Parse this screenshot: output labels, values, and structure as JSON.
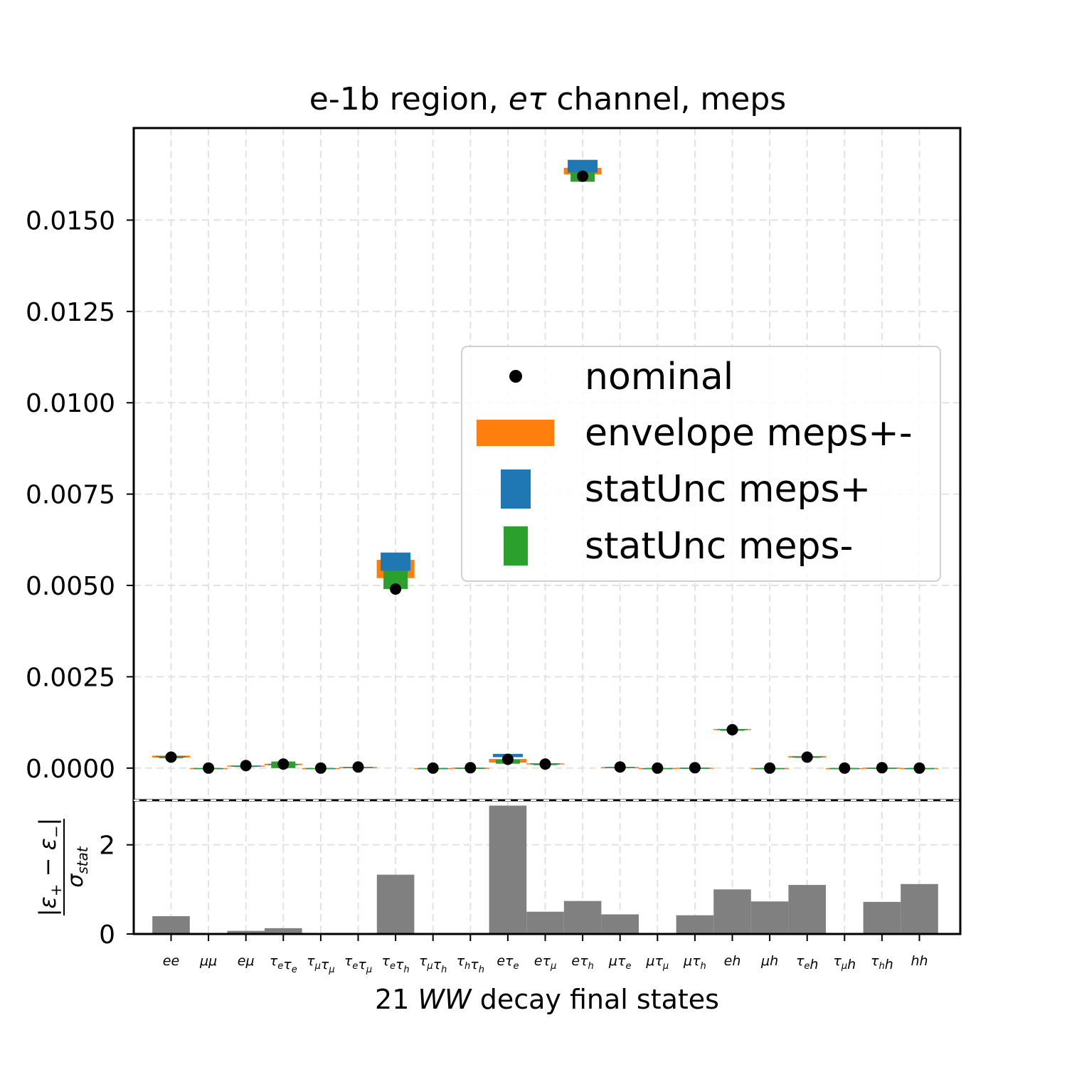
{
  "chart_data": [
    {
      "type": "scatter",
      "title": "e-1b region, eτ channel, meps",
      "title_parts": [
        "e-1b region, ",
        "eτ",
        " channel, meps"
      ],
      "ylim": [
        -0.00088,
        0.01752
      ],
      "yticks": [
        "0.0000",
        "0.0025",
        "0.0050",
        "0.0075",
        "0.0100",
        "0.0125",
        "0.0150"
      ],
      "ytick_values": [
        0,
        0.0025,
        0.005,
        0.0075,
        0.01,
        0.0125,
        0.015
      ],
      "grid": true,
      "legend_position": "center-right",
      "categories": [
        {
          "base": "ee",
          "sub": ""
        },
        {
          "base": "μμ",
          "sub": ""
        },
        {
          "base": "eμ",
          "sub": ""
        },
        {
          "parts": [
            [
              "τ",
              "e"
            ],
            [
              "τ",
              "e"
            ]
          ]
        },
        {
          "parts": [
            [
              "τ",
              "μ"
            ],
            [
              "τ",
              "μ"
            ]
          ]
        },
        {
          "parts": [
            [
              "τ",
              "e"
            ],
            [
              "τ",
              "μ"
            ]
          ]
        },
        {
          "parts": [
            [
              "τ",
              "e"
            ],
            [
              "τ",
              "h"
            ]
          ]
        },
        {
          "parts": [
            [
              "τ",
              "μ"
            ],
            [
              "τ",
              "h"
            ]
          ]
        },
        {
          "parts": [
            [
              "τ",
              "h"
            ],
            [
              "τ",
              "h"
            ]
          ]
        },
        {
          "parts": [
            [
              "e",
              ""
            ],
            [
              "τ",
              "e"
            ]
          ]
        },
        {
          "parts": [
            [
              "e",
              ""
            ],
            [
              "τ",
              "μ"
            ]
          ]
        },
        {
          "parts": [
            [
              "e",
              ""
            ],
            [
              "τ",
              "h"
            ]
          ]
        },
        {
          "parts": [
            [
              "μ",
              ""
            ],
            [
              "τ",
              "e"
            ]
          ]
        },
        {
          "parts": [
            [
              "μ",
              ""
            ],
            [
              "τ",
              "μ"
            ]
          ]
        },
        {
          "parts": [
            [
              "μ",
              ""
            ],
            [
              "τ",
              "h"
            ]
          ]
        },
        {
          "base": "eh",
          "sub": ""
        },
        {
          "base": "μh",
          "sub": ""
        },
        {
          "parts": [
            [
              "τ",
              "e"
            ],
            [
              "h",
              ""
            ]
          ]
        },
        {
          "parts": [
            [
              "τ",
              "μ"
            ],
            [
              "h",
              ""
            ]
          ]
        },
        {
          "parts": [
            [
              "τ",
              "h"
            ],
            [
              "h",
              ""
            ]
          ]
        },
        {
          "base": "hh",
          "sub": ""
        }
      ],
      "series": [
        {
          "name": "nominal",
          "color": "#000000",
          "values": [
            0.0003,
            0.0,
            7e-05,
            0.00011,
            0.0,
            3e-05,
            0.0049,
            0.0,
            1e-05,
            0.00024,
            0.00011,
            0.0162,
            3e-05,
            0.0,
            1e-05,
            0.00105,
            0.0,
            0.0003,
            0.0,
            1e-05,
            0.0
          ]
        },
        {
          "name": "envelope meps+-",
          "color": "#ff7f0e",
          "low": [
            0.00029,
            0.0,
            5e-05,
            8e-05,
            0.0,
            2e-05,
            0.0052,
            0.0,
            5e-06,
            0.00015,
            0.0001,
            0.01625,
            2e-05,
            0.0,
            5e-06,
            0.00104,
            0.0,
            0.00029,
            0.0,
            0.0,
            0.0
          ],
          "high": [
            0.00034,
            0.0,
            7e-05,
            0.00012,
            0.0,
            3e-05,
            0.0057,
            0.0,
            1e-05,
            0.00025,
            0.00013,
            0.01643,
            3e-05,
            0.0,
            1e-05,
            0.00107,
            0.0,
            0.00033,
            0.0,
            1e-05,
            0.0
          ]
        },
        {
          "name": "statUnc meps+",
          "color": "#1f77b4",
          "low": [
            0.00031,
            0.0,
            6e-05,
            9e-05,
            0.0,
            2e-05,
            0.0054,
            0.0,
            5e-06,
            0.0003,
            0.0001,
            0.0163,
            2e-05,
            0.0,
            5e-06,
            0.00105,
            0.0,
            0.0003,
            0.0,
            0.0,
            0.0
          ],
          "high": [
            0.00033,
            0.0,
            7e-05,
            0.00011,
            0.0,
            3e-05,
            0.0059,
            0.0,
            1e-05,
            0.00039,
            0.00013,
            0.01665,
            3e-05,
            0.0,
            1e-05,
            0.00107,
            0.0,
            0.00032,
            0.0,
            1e-05,
            0.0
          ]
        },
        {
          "name": "statUnc meps-",
          "color": "#2ca02c",
          "low": [
            0.00027,
            0.0,
            5e-05,
            0.0,
            0.0,
            2e-05,
            0.0049,
            0.0,
            5e-06,
            0.00012,
            9e-05,
            0.01605,
            2e-05,
            0.0,
            5e-06,
            0.00103,
            0.0,
            0.00028,
            0.0,
            0.0,
            0.0
          ],
          "high": [
            0.0003,
            0.0,
            6e-05,
            0.00018,
            0.0,
            3e-05,
            0.0054,
            0.0,
            1e-05,
            0.00023,
            0.00011,
            0.0163,
            3e-05,
            0.0,
            1e-05,
            0.00105,
            0.0,
            0.00031,
            0.0,
            1e-05,
            0.0
          ]
        }
      ]
    },
    {
      "type": "bar",
      "ylabel_parts": [
        "|ε",
        "+",
        " − ε",
        "−",
        "|",
        "σ",
        "stat"
      ],
      "xlabel_parts": [
        "21 ",
        "WW",
        " decay final states"
      ],
      "ylim": [
        0,
        3.0
      ],
      "yticks": [
        "0",
        "2"
      ],
      "ytick_values": [
        0,
        2
      ],
      "color": "#808080",
      "values": [
        0.4,
        0.0,
        0.07,
        0.13,
        0.0,
        0.0,
        1.33,
        0.0,
        0.0,
        2.88,
        0.5,
        0.74,
        0.44,
        0.0,
        0.42,
        1.0,
        0.73,
        1.1,
        0.0,
        0.72,
        1.12
      ]
    }
  ]
}
